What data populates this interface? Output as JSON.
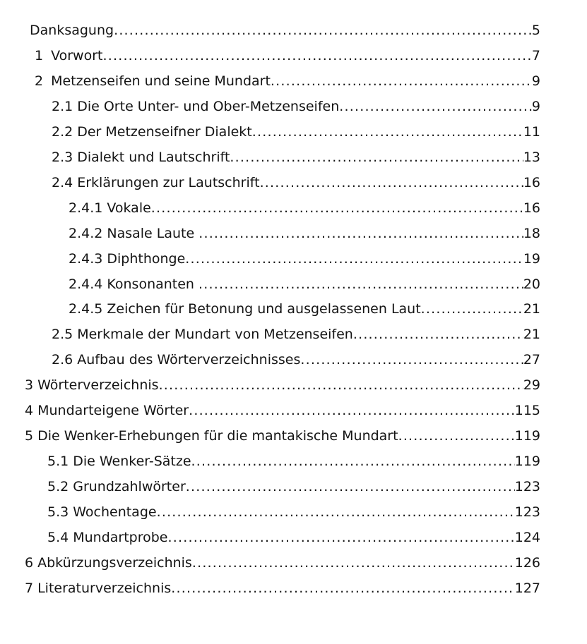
{
  "document": {
    "kind": "table-of-contents",
    "background_color": "#ffffff",
    "text_color": "#141414",
    "entries": [
      {
        "num": "",
        "title": "Danksagung",
        "page": "5",
        "level": "a"
      },
      {
        "num": "1",
        "title": "Vorwort",
        "page": "7",
        "level": "b"
      },
      {
        "num": "2",
        "title": "Metzenseifen und seine Mundart",
        "page": "9",
        "level": "b"
      },
      {
        "num": "2.1",
        "title": "Die Orte Unter- und Ober-Metzenseifen",
        "page": "9",
        "level": "c"
      },
      {
        "num": "2.2",
        "title": "Der Metzenseifner Dialekt",
        "page": "11",
        "level": "c"
      },
      {
        "num": "2.3",
        "title": "Dialekt und Lautschrift",
        "page": "13",
        "level": "c"
      },
      {
        "num": "2.4",
        "title": "Erklärungen zur Lautschrift",
        "page": "16",
        "level": "c"
      },
      {
        "num": "2.4.1",
        "title": "Vokale",
        "page": "16",
        "level": "d"
      },
      {
        "num": "2.4.2",
        "title": "Nasale Laute ",
        "page": "18",
        "level": "d"
      },
      {
        "num": "2.4.3",
        "title": "Diphthonge",
        "page": "19",
        "level": "d"
      },
      {
        "num": "2.4.4",
        "title": "Konsonanten ",
        "page": "20",
        "level": "d"
      },
      {
        "num": "2.4.5",
        "title": "Zeichen für Betonung und ausgelassenen Laut",
        "page": "21",
        "level": "d"
      },
      {
        "num": "2.5",
        "title": "Merkmale der Mundart von Metzenseifen",
        "page": "21",
        "level": "c"
      },
      {
        "num": "2.6",
        "title": "Aufbau des Wörterverzeichnisses",
        "page": "27",
        "level": "c"
      },
      {
        "num": "3",
        "title": "Wörterverzeichnis",
        "page": "29",
        "level": "e"
      },
      {
        "num": "4",
        "title": "Mundarteigene Wörter",
        "page": "115",
        "level": "e"
      },
      {
        "num": "5",
        "title": "Die Wenker-Erhebungen für die mantakische Mundart",
        "page": "119",
        "level": "e"
      },
      {
        "num": "5.1",
        "title": "Die Wenker-Sätze",
        "page": "119",
        "level": "f"
      },
      {
        "num": "5.2",
        "title": "Grundzahlwörter",
        "page": "123",
        "level": "f"
      },
      {
        "num": "5.3",
        "title": "Wochentage",
        "page": "123",
        "level": "f"
      },
      {
        "num": "5.4",
        "title": "Mundartprobe",
        "page": "124",
        "level": "f"
      },
      {
        "num": "6",
        "title": "Abkürzungsverzeichnis",
        "page": "126",
        "level": "e"
      },
      {
        "num": "7",
        "title": "Literaturverzeichnis",
        "page": "127",
        "level": "e"
      }
    ]
  }
}
